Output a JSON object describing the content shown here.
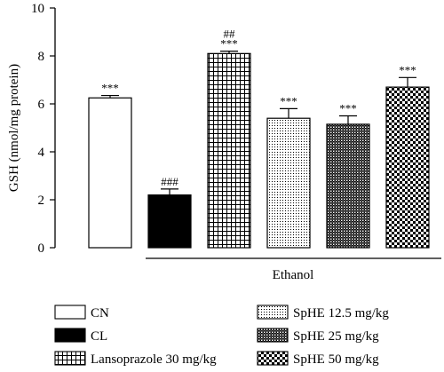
{
  "chart_data": {
    "type": "bar",
    "title": "",
    "ylabel": "GSH (nmol/mg protein)",
    "xlabel": "",
    "ylim": [
      0,
      10
    ],
    "yticks": [
      "0",
      "2",
      "4",
      "6",
      "8",
      "10"
    ],
    "bracket_label": "Ethanol",
    "categories": [
      "CN",
      "CL",
      "Lansoprazole 30 mg/kg",
      "SpHE 12.5 mg/kg",
      "SpHE 25 mg/kg",
      "SpHE 50 mg/kg"
    ],
    "values": [
      6.25,
      2.2,
      8.1,
      5.4,
      5.15,
      6.7
    ],
    "errors": [
      0.1,
      0.25,
      0.1,
      0.4,
      0.35,
      0.4
    ],
    "annotations": [
      [
        "***"
      ],
      [
        "###"
      ],
      [
        "##",
        "***"
      ],
      [
        "***"
      ],
      [
        "***"
      ],
      [
        "***"
      ]
    ],
    "patterns": [
      "white",
      "black",
      "grid",
      "dots",
      "crosshatch",
      "checker"
    ],
    "legend": [
      {
        "label": "CN",
        "pattern": "white"
      },
      {
        "label": "CL",
        "pattern": "black"
      },
      {
        "label": "Lansoprazole 30 mg/kg",
        "pattern": "grid"
      },
      {
        "label": "SpHE 12.5 mg/kg",
        "pattern": "dots"
      },
      {
        "label": "SpHE 25 mg/kg",
        "pattern": "crosshatch"
      },
      {
        "label": "SpHE 50 mg/kg",
        "pattern": "checker"
      }
    ]
  }
}
